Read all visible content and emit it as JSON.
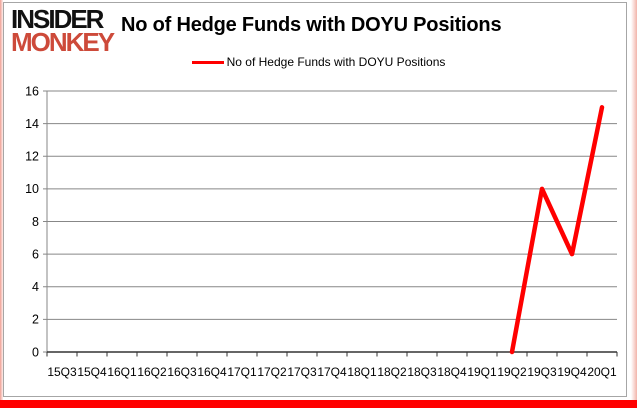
{
  "branding": {
    "logo_line1": "INSIDER",
    "logo_line2": "MONKEY",
    "logo_color_primary": "#111111",
    "logo_color_accent": "#cd4a3a"
  },
  "header": {
    "title": "No of Hedge Funds with DOYU Positions"
  },
  "legend": {
    "label": "No of Hedge Funds with DOYU Positions",
    "swatch_color": "#ff0000"
  },
  "chart_data": {
    "type": "line",
    "title": "No of Hedge Funds with DOYU Positions",
    "xlabel": "",
    "ylabel": "",
    "categories": [
      "15Q3",
      "15Q4",
      "16Q1",
      "16Q2",
      "16Q3",
      "16Q4",
      "17Q1",
      "17Q2",
      "17Q3",
      "17Q4",
      "18Q1",
      "18Q2",
      "18Q3",
      "18Q4",
      "19Q1",
      "19Q2",
      "19Q3",
      "19Q4",
      "20Q1"
    ],
    "series": [
      {
        "name": "No of Hedge Funds with DOYU Positions",
        "color": "#ff0000",
        "values": [
          null,
          null,
          null,
          null,
          null,
          null,
          null,
          null,
          null,
          null,
          null,
          null,
          null,
          null,
          null,
          0,
          10,
          6,
          15
        ]
      }
    ],
    "ylim": [
      0,
      16
    ],
    "yticks": [
      0,
      2,
      4,
      6,
      8,
      10,
      12,
      14,
      16
    ],
    "grid": "horizontal",
    "legend_position": "top-center"
  },
  "frame": {
    "accent_color": "#ff0000",
    "glow_color": "#f2b4aa",
    "border_color": "#a6a6a6",
    "grid_color": "#878787",
    "axis_color": "#333333",
    "label_color": "#000000"
  }
}
